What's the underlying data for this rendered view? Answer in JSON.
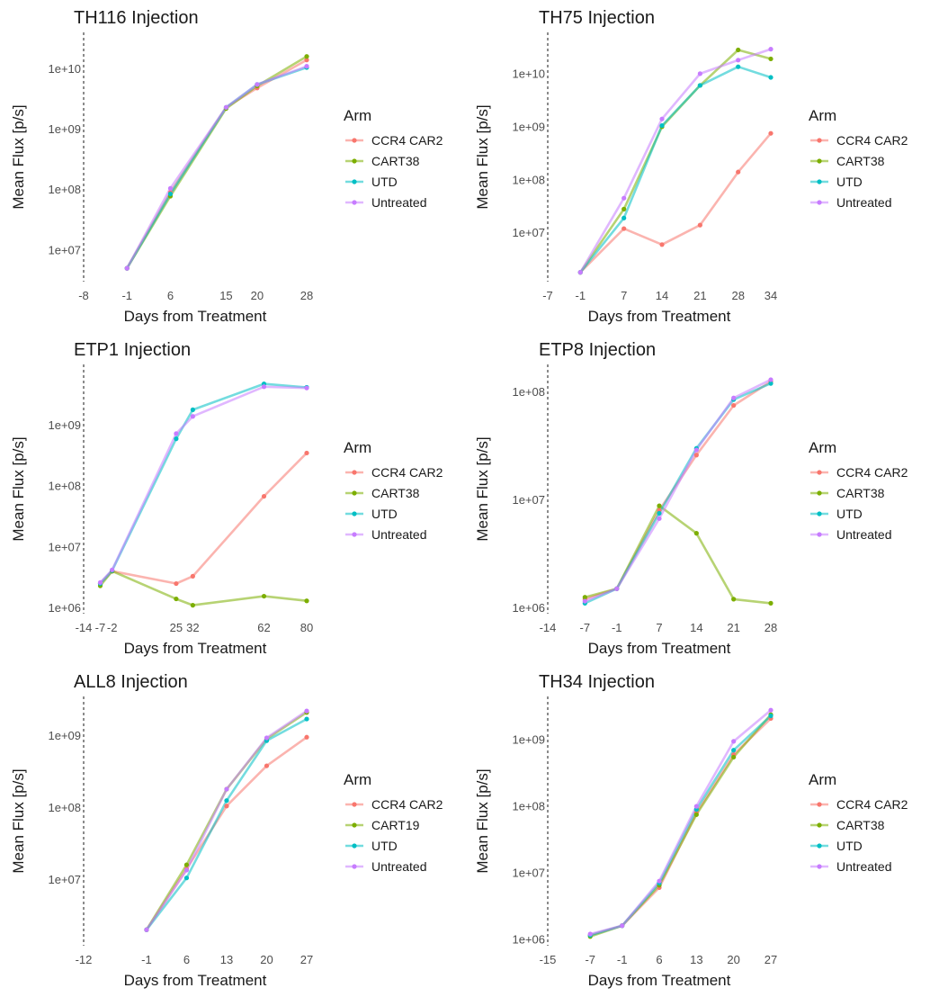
{
  "figure": {
    "legend_title": "Arm",
    "xlabel": "Days from Treatment",
    "ylabel": "Mean Flux [p/s]"
  },
  "colors": {
    "CCR4 CAR2": "#F8766D",
    "CART38": "#7CAE00",
    "CART19": "#7CAE00",
    "UTD": "#00BFC4",
    "Untreated": "#C77CFF"
  },
  "chart_data": [
    {
      "type": "line",
      "title": "TH116 Injection",
      "xlabel": "Days from Treatment",
      "ylabel": "Mean Flux [p/s]",
      "yscale": "log10",
      "xlim": [
        -8,
        28
      ],
      "ylim": [
        3000000,
        40000000000
      ],
      "vline_x": -8,
      "x_ticks": [
        -8,
        -1,
        6,
        15,
        20,
        28
      ],
      "y_ticks": [
        {
          "value": 10000000,
          "label": "1e+07"
        },
        {
          "value": 100000000,
          "label": "1e+08"
        },
        {
          "value": 1000000000,
          "label": "1e+09"
        },
        {
          "value": 10000000000,
          "label": "1e+10"
        }
      ],
      "legend": [
        "CCR4 CAR2",
        "CART38",
        "UTD",
        "Untreated"
      ],
      "series": [
        {
          "name": "CCR4 CAR2",
          "x": [
            -1,
            6,
            15,
            20,
            28
          ],
          "y": [
            5000000,
            90000000,
            2300000000,
            4800000000,
            14000000000
          ]
        },
        {
          "name": "CART38",
          "x": [
            -1,
            6,
            15,
            20,
            28
          ],
          "y": [
            5000000,
            78000000,
            2200000000,
            5200000000,
            16000000000
          ]
        },
        {
          "name": "UTD",
          "x": [
            -1,
            6,
            15,
            20,
            28
          ],
          "y": [
            5000000,
            85000000,
            2300000000,
            5500000000,
            10500000000
          ]
        },
        {
          "name": "Untreated",
          "x": [
            -1,
            6,
            15,
            20,
            28
          ],
          "y": [
            5000000,
            105000000,
            2300000000,
            5500000000,
            11000000000
          ]
        }
      ]
    },
    {
      "type": "line",
      "title": "TH75 Injection",
      "xlabel": "Days from Treatment",
      "ylabel": "Mean Flux [p/s]",
      "yscale": "log10",
      "xlim": [
        -7,
        34
      ],
      "ylim": [
        1200000,
        60000000000
      ],
      "vline_x": -7,
      "x_ticks": [
        -7,
        -1,
        7,
        14,
        21,
        28,
        34
      ],
      "y_ticks": [
        {
          "value": 10000000,
          "label": "1e+07"
        },
        {
          "value": 100000000,
          "label": "1e+08"
        },
        {
          "value": 1000000000,
          "label": "1e+09"
        },
        {
          "value": 10000000000,
          "label": "1e+10"
        }
      ],
      "legend": [
        "CCR4 CAR2",
        "CART38",
        "UTD",
        "Untreated"
      ],
      "series": [
        {
          "name": "CCR4 CAR2",
          "x": [
            -1,
            7,
            14,
            21,
            28,
            34
          ],
          "y": [
            1800000,
            12000000,
            6000000,
            14000000,
            140000000,
            750000000
          ]
        },
        {
          "name": "CART38",
          "x": [
            -1,
            7,
            14,
            21,
            28,
            34
          ],
          "y": [
            1800000,
            28000000,
            1000000000,
            6000000000,
            28000000000,
            19000000000
          ]
        },
        {
          "name": "UTD",
          "x": [
            -1,
            7,
            14,
            21,
            28,
            34
          ],
          "y": [
            1800000,
            19000000,
            1050000000,
            6000000000,
            13500000000,
            8500000000
          ]
        },
        {
          "name": "Untreated",
          "x": [
            -1,
            7,
            14,
            21,
            28,
            34
          ],
          "y": [
            1800000,
            45000000,
            1400000000,
            10000000000,
            18000000000,
            29000000000
          ]
        }
      ]
    },
    {
      "type": "line",
      "title": "ETP1 Injection",
      "xlabel": "Days from Treatment",
      "ylabel": "Mean Flux [p/s]",
      "yscale": "log10",
      "xlim": [
        -14,
        80
      ],
      "ylim": [
        800000,
        10000000000
      ],
      "vline_x": -14,
      "x_ticks": [
        -14,
        -7,
        -2,
        25,
        32,
        62,
        80
      ],
      "x_tick_labels": [
        "-14",
        "-7",
        "-2",
        "25",
        "32",
        "62",
        "80"
      ],
      "y_ticks": [
        {
          "value": 1000000,
          "label": "1e+06"
        },
        {
          "value": 10000000,
          "label": "1e+07"
        },
        {
          "value": 100000000,
          "label": "1e+08"
        },
        {
          "value": 1000000000,
          "label": "1e+09"
        }
      ],
      "legend": [
        "CCR4 CAR2",
        "CART38",
        "UTD",
        "Untreated"
      ],
      "series": [
        {
          "name": "CCR4 CAR2",
          "x": [
            -7,
            -2,
            25,
            32,
            62,
            80
          ],
          "y": [
            2500000,
            4000000,
            2500000,
            3300000,
            68000000,
            350000000
          ]
        },
        {
          "name": "CART38",
          "x": [
            -7,
            -2,
            25,
            32,
            62,
            80
          ],
          "y": [
            2300000,
            4000000,
            1400000,
            1100000,
            1550000,
            1300000
          ]
        },
        {
          "name": "UTD",
          "x": [
            -7,
            -2,
            25,
            32,
            62,
            80
          ],
          "y": [
            2500000,
            4100000,
            600000000,
            1800000000,
            4800000000,
            4200000000
          ]
        },
        {
          "name": "Untreated",
          "x": [
            -7,
            -2,
            25,
            32,
            62,
            80
          ],
          "y": [
            2600000,
            4200000,
            730000000,
            1400000000,
            4300000000,
            4100000000
          ]
        }
      ]
    },
    {
      "type": "line",
      "title": "ETP8 Injection",
      "xlabel": "Days from Treatment",
      "ylabel": "Mean Flux [p/s]",
      "yscale": "log10",
      "xlim": [
        -14,
        28
      ],
      "ylim": [
        880000,
        180000000
      ],
      "vline_x": -14,
      "x_ticks": [
        -14,
        -7,
        -1,
        7,
        14,
        21,
        28
      ],
      "y_ticks": [
        {
          "value": 1000000,
          "label": "1e+06"
        },
        {
          "value": 10000000,
          "label": "1e+07"
        },
        {
          "value": 100000000,
          "label": "1e+08"
        }
      ],
      "legend": [
        "CCR4 CAR2",
        "CART38",
        "UTD",
        "Untreated"
      ],
      "series": [
        {
          "name": "CCR4 CAR2",
          "x": [
            -7,
            -1,
            7,
            14,
            21,
            28
          ],
          "y": [
            1200000,
            1500000,
            8000000,
            26000000,
            75000000,
            125000000
          ]
        },
        {
          "name": "CART38",
          "x": [
            -7,
            -1,
            7,
            14,
            21,
            28
          ],
          "y": [
            1250000,
            1500000,
            8800000,
            4900000,
            1200000,
            1100000
          ]
        },
        {
          "name": "UTD",
          "x": [
            -7,
            -1,
            7,
            14,
            21,
            28
          ],
          "y": [
            1100000,
            1500000,
            7500000,
            30000000,
            85000000,
            120000000
          ]
        },
        {
          "name": "Untreated",
          "x": [
            -7,
            -1,
            7,
            14,
            21,
            28
          ],
          "y": [
            1150000,
            1500000,
            6700000,
            29000000,
            88000000,
            130000000
          ]
        }
      ]
    },
    {
      "type": "line",
      "title": "ALL8 Injection",
      "xlabel": "Days from Treatment",
      "ylabel": "Mean Flux [p/s]",
      "yscale": "log10",
      "xlim": [
        -12,
        27
      ],
      "ylim": [
        1200000,
        3500000000
      ],
      "vline_x": -12,
      "x_ticks": [
        -12,
        -1,
        6,
        13,
        20,
        27
      ],
      "y_ticks": [
        {
          "value": 10000000,
          "label": "1e+07"
        },
        {
          "value": 100000000,
          "label": "1e+08"
        },
        {
          "value": 1000000000,
          "label": "1e+09"
        }
      ],
      "legend": [
        "CCR4 CAR2",
        "CART19",
        "UTD",
        "Untreated"
      ],
      "series": [
        {
          "name": "CCR4 CAR2",
          "x": [
            -1,
            6,
            13,
            20,
            27
          ],
          "y": [
            2000000,
            14000000,
            105000000,
            380000000,
            950000000
          ]
        },
        {
          "name": "CART19",
          "x": [
            -1,
            6,
            13,
            20,
            27
          ],
          "y": [
            2000000,
            16000000,
            180000000,
            900000000,
            2100000000
          ]
        },
        {
          "name": "UTD",
          "x": [
            -1,
            6,
            13,
            20,
            27
          ],
          "y": [
            2000000,
            10500000,
            125000000,
            850000000,
            1700000000
          ]
        },
        {
          "name": "Untreated",
          "x": [
            -1,
            6,
            13,
            20,
            27
          ],
          "y": [
            2000000,
            13500000,
            180000000,
            930000000,
            2200000000
          ]
        }
      ]
    },
    {
      "type": "line",
      "title": "TH34 Injection",
      "xlabel": "Days from Treatment",
      "ylabel": "Mean Flux [p/s]",
      "yscale": "log10",
      "xlim": [
        -15,
        27
      ],
      "ylim": [
        800000,
        4500000000
      ],
      "vline_x": -15,
      "x_ticks": [
        -15,
        -7,
        -1,
        6,
        13,
        20,
        27
      ],
      "y_ticks": [
        {
          "value": 1000000,
          "label": "1e+06"
        },
        {
          "value": 10000000,
          "label": "1e+07"
        },
        {
          "value": 100000000,
          "label": "1e+08"
        },
        {
          "value": 1000000000,
          "label": "1e+09"
        }
      ],
      "legend": [
        "CCR4 CAR2",
        "CART38",
        "UTD",
        "Untreated"
      ],
      "series": [
        {
          "name": "CCR4 CAR2",
          "x": [
            -7,
            -1,
            6,
            13,
            20,
            27
          ],
          "y": [
            1150000,
            1600000,
            6000000,
            80000000,
            600000000,
            2100000000
          ]
        },
        {
          "name": "CART38",
          "x": [
            -7,
            -1,
            6,
            13,
            20,
            27
          ],
          "y": [
            1100000,
            1600000,
            6500000,
            75000000,
            550000000,
            2400000000
          ]
        },
        {
          "name": "UTD",
          "x": [
            -7,
            -1,
            6,
            13,
            20,
            27
          ],
          "y": [
            1150000,
            1600000,
            7000000,
            90000000,
            700000000,
            2300000000
          ]
        },
        {
          "name": "Untreated",
          "x": [
            -7,
            -1,
            6,
            13,
            20,
            27
          ],
          "y": [
            1200000,
            1600000,
            7500000,
            100000000,
            950000000,
            2800000000
          ]
        }
      ]
    }
  ]
}
